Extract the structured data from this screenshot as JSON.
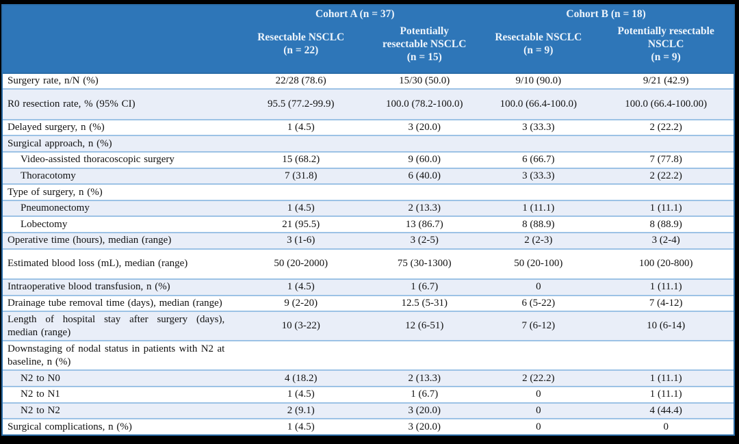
{
  "header": {
    "cohort_a": "Cohort A (n = 37)",
    "cohort_b": "Cohort B (n = 18)",
    "columns": [
      {
        "title": "Resectable NSCLC",
        "count": "(n = 22)"
      },
      {
        "title": "Potentially resectable NSCLC",
        "count": "(n = 15)"
      },
      {
        "title": "Resectable NSCLC",
        "count": "(n = 9)"
      },
      {
        "title": "Potentially resectable NSCLC",
        "count": "(n = 9)"
      }
    ]
  },
  "table": {
    "rows": [
      {
        "label": "Surgery rate, n/N (%)",
        "indent": false,
        "tall": false,
        "values": [
          "22/28 (78.6)",
          "15/30 (50.0)",
          "9/10 (90.0)",
          "9/21 (42.9)"
        ]
      },
      {
        "label": "R0 resection rate, % (95% CI)",
        "indent": false,
        "tall": true,
        "values": [
          "95.5 (77.2-99.9)",
          "100.0 (78.2-100.0)",
          "100.0 (66.4-100.0)",
          "100.0 (66.4-100.00)"
        ]
      },
      {
        "label": "Delayed surgery, n (%)",
        "indent": false,
        "tall": false,
        "values": [
          "1 (4.5)",
          "3 (20.0)",
          "3 (33.3)",
          "2 (22.2)"
        ]
      },
      {
        "label": "Surgical approach, n (%)",
        "indent": false,
        "tall": false,
        "values": [
          "",
          "",
          "",
          ""
        ]
      },
      {
        "label": "Video-assisted thoracoscopic surgery",
        "indent": true,
        "tall": false,
        "values": [
          "15 (68.2)",
          "9 (60.0)",
          "6 (66.7)",
          "7 (77.8)"
        ]
      },
      {
        "label": "Thoracotomy",
        "indent": true,
        "tall": false,
        "values": [
          "7 (31.8)",
          "6 (40.0)",
          "3 (33.3)",
          "2 (22.2)"
        ]
      },
      {
        "label": "Type of surgery, n (%)",
        "indent": false,
        "tall": false,
        "values": [
          "",
          "",
          "",
          ""
        ]
      },
      {
        "label": "Pneumonectomy",
        "indent": true,
        "tall": false,
        "values": [
          "1 (4.5)",
          "2 (13.3)",
          "1 (11.1)",
          "1 (11.1)"
        ]
      },
      {
        "label": "Lobectomy",
        "indent": true,
        "tall": false,
        "values": [
          "21 (95.5)",
          "13 (86.7)",
          "8 (88.9)",
          "8 (88.9)"
        ]
      },
      {
        "label": "Operative time (hours), median (range)",
        "indent": false,
        "tall": false,
        "values": [
          "3 (1-6)",
          "3 (2-5)",
          "2 (2-3)",
          "3 (2-4)"
        ]
      },
      {
        "label": "Estimated blood loss (mL), median (range)",
        "indent": false,
        "tall": true,
        "values": [
          "50 (20-2000)",
          "75 (30-1300)",
          "50 (20-100)",
          "100 (20-800)"
        ]
      },
      {
        "label": "Intraoperative blood transfusion, n (%)",
        "indent": false,
        "tall": false,
        "values": [
          "1 (4.5)",
          "1 (6.7)",
          "0",
          "1 (11.1)"
        ]
      },
      {
        "label": "Drainage tube removal time (days), median (range)",
        "indent": false,
        "tall": false,
        "values": [
          "9 (2-20)",
          "12.5 (5-31)",
          "6 (5-22)",
          "7 (4-12)"
        ]
      },
      {
        "label": "Length of hospital stay after surgery (days), median (range)",
        "indent": false,
        "tall": false,
        "values": [
          "10 (3-22)",
          "12 (6-51)",
          "7 (6-12)",
          "10 (6-14)"
        ]
      },
      {
        "label": "Downstaging of nodal status in patients with N2 at baseline, n (%)",
        "indent": false,
        "tall": false,
        "values": [
          "",
          "",
          "",
          ""
        ]
      },
      {
        "label": "N2 to N0",
        "indent": true,
        "tall": false,
        "values": [
          "4 (18.2)",
          "2 (13.3)",
          "2 (22.2)",
          "1 (11.1)"
        ]
      },
      {
        "label": "N2 to N1",
        "indent": true,
        "tall": false,
        "values": [
          "1 (4.5)",
          "1 (6.7)",
          "0",
          "1 (11.1)"
        ]
      },
      {
        "label": "N2 to N2",
        "indent": true,
        "tall": false,
        "values": [
          "2 (9.1)",
          "3 (20.0)",
          "0",
          "4 (44.4)"
        ]
      },
      {
        "label": "Surgical complications, n (%)",
        "indent": false,
        "tall": false,
        "values": [
          "1 (4.5)",
          "3 (20.0)",
          "0",
          "0"
        ]
      }
    ]
  },
  "colors": {
    "header_blue": "#2E76B8",
    "outer_border": "#2B6DA8",
    "row_border": "#9CC2E5",
    "stripe_blue": "#E9EEF8",
    "header_text": "#EDF4FB",
    "body_text": "#111111",
    "frame_background": "#000000"
  }
}
